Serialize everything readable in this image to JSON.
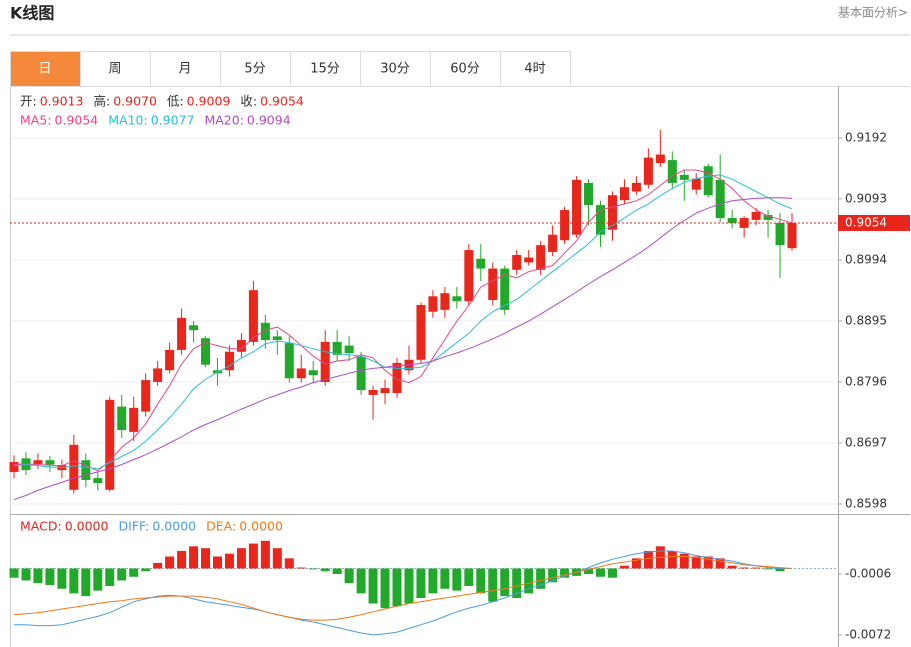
{
  "header": {
    "title": "K线图",
    "link": "基本面分析>"
  },
  "tabs": [
    {
      "label": "日",
      "active": true
    },
    {
      "label": "周",
      "active": false
    },
    {
      "label": "月",
      "active": false
    },
    {
      "label": "5分",
      "active": false
    },
    {
      "label": "15分",
      "active": false
    },
    {
      "label": "30分",
      "active": false
    },
    {
      "label": "60分",
      "active": false
    },
    {
      "label": "4时",
      "active": false
    }
  ],
  "chart_data": [
    {
      "type": "candlestick",
      "ohlc_legend": [
        {
          "label": "开:",
          "value": "0.9013"
        },
        {
          "label": "高:",
          "value": "0.9070"
        },
        {
          "label": "低:",
          "value": "0.9009"
        },
        {
          "label": "收:",
          "value": "0.9054"
        }
      ],
      "up_color": "#e8261c",
      "down_color": "#22a82a",
      "open": [
        0.865,
        0.8672,
        0.8663,
        0.8669,
        0.8653,
        0.8621,
        0.8669,
        0.864,
        0.8621,
        0.8756,
        0.8715,
        0.8748,
        0.8796,
        0.8815,
        0.8848,
        0.8888,
        0.8867,
        0.8815,
        0.8815,
        0.8845,
        0.8861,
        0.8892,
        0.887,
        0.8859,
        0.8802,
        0.8815,
        0.8796,
        0.8861,
        0.8855,
        0.8837,
        0.8775,
        0.8778,
        0.8778,
        0.8815,
        0.8832,
        0.891,
        0.8913,
        0.8935,
        0.8927,
        0.8996,
        0.8929,
        0.898,
        0.8978,
        0.899,
        0.8978,
        0.9007,
        0.9026,
        0.9035,
        0.9119,
        0.9083,
        0.9043,
        0.9091,
        0.9105,
        0.9116,
        0.9151,
        0.9156,
        0.9132,
        0.9108,
        0.9146,
        0.9124,
        0.9062,
        0.9046,
        0.9059,
        0.9067,
        0.9054,
        0.9013
      ],
      "high": [
        0.8677,
        0.8682,
        0.868,
        0.8676,
        0.867,
        0.871,
        0.868,
        0.865,
        0.8772,
        0.8775,
        0.8772,
        0.881,
        0.883,
        0.886,
        0.8915,
        0.8895,
        0.887,
        0.8835,
        0.8855,
        0.8875,
        0.896,
        0.8905,
        0.888,
        0.887,
        0.884,
        0.883,
        0.888,
        0.888,
        0.887,
        0.8845,
        0.879,
        0.88,
        0.8835,
        0.8855,
        0.8925,
        0.8945,
        0.895,
        0.895,
        0.902,
        0.902,
        0.899,
        0.8985,
        0.901,
        0.901,
        0.9025,
        0.905,
        0.908,
        0.913,
        0.9125,
        0.909,
        0.9105,
        0.9125,
        0.913,
        0.9175,
        0.9205,
        0.917,
        0.914,
        0.9135,
        0.915,
        0.9165,
        0.9075,
        0.9065,
        0.9078,
        0.9075,
        0.907,
        0.907
      ],
      "low": [
        0.864,
        0.8645,
        0.8655,
        0.865,
        0.864,
        0.8615,
        0.8625,
        0.862,
        0.8618,
        0.8705,
        0.87,
        0.874,
        0.879,
        0.881,
        0.884,
        0.886,
        0.882,
        0.879,
        0.8805,
        0.8835,
        0.8855,
        0.885,
        0.884,
        0.8795,
        0.8795,
        0.8795,
        0.879,
        0.883,
        0.883,
        0.8775,
        0.8735,
        0.876,
        0.877,
        0.8808,
        0.8825,
        0.89,
        0.89,
        0.8915,
        0.892,
        0.896,
        0.892,
        0.8905,
        0.897,
        0.8985,
        0.897,
        0.9,
        0.902,
        0.903,
        0.905,
        0.9015,
        0.9025,
        0.9085,
        0.91,
        0.911,
        0.9145,
        0.911,
        0.909,
        0.91,
        0.9095,
        0.9055,
        0.9045,
        0.903,
        0.905,
        0.903,
        0.8965,
        0.9009
      ],
      "close": [
        0.8666,
        0.8653,
        0.8669,
        0.8662,
        0.8661,
        0.8694,
        0.8637,
        0.8632,
        0.8767,
        0.8718,
        0.8754,
        0.8799,
        0.8818,
        0.8848,
        0.89,
        0.888,
        0.8824,
        0.881,
        0.8845,
        0.8864,
        0.8945,
        0.8864,
        0.8864,
        0.8802,
        0.8818,
        0.8807,
        0.8861,
        0.884,
        0.8843,
        0.8783,
        0.8783,
        0.8786,
        0.8827,
        0.8832,
        0.8921,
        0.8935,
        0.894,
        0.8927,
        0.901,
        0.898,
        0.898,
        0.8913,
        0.9002,
        0.8998,
        0.9018,
        0.9035,
        0.9075,
        0.9124,
        0.9083,
        0.9035,
        0.9099,
        0.9112,
        0.9119,
        0.916,
        0.9165,
        0.9119,
        0.9124,
        0.9126,
        0.9099,
        0.9062,
        0.9054,
        0.9062,
        0.9072,
        0.9059,
        0.9018,
        0.9054
      ],
      "series": [
        {
          "name": "MA5:",
          "value_label": "0.9054",
          "color": "#e8468a",
          "values": [
            0.8662,
            0.8663,
            0.8662,
            0.8661,
            0.866,
            0.8668,
            0.866,
            0.8652,
            0.8668,
            0.869,
            0.8705,
            0.8728,
            0.876,
            0.879,
            0.8825,
            0.885,
            0.886,
            0.8855,
            0.885,
            0.885,
            0.8868,
            0.888,
            0.8885,
            0.8872,
            0.8855,
            0.8838,
            0.8825,
            0.883,
            0.8832,
            0.884,
            0.8835,
            0.8815,
            0.88,
            0.8795,
            0.8805,
            0.8835,
            0.8865,
            0.8895,
            0.892,
            0.895,
            0.896,
            0.897,
            0.8965,
            0.8975,
            0.898,
            0.8985,
            0.9005,
            0.9025,
            0.9055,
            0.9075,
            0.908,
            0.9085,
            0.909,
            0.91,
            0.9115,
            0.913,
            0.914,
            0.914,
            0.9135,
            0.9125,
            0.911,
            0.909,
            0.9075,
            0.9065,
            0.906,
            0.9054
          ]
        },
        {
          "name": "MA10:",
          "value_label": "0.9077",
          "color": "#2bbfd6",
          "values": [
            0.866,
            0.8662,
            0.866,
            0.8658,
            0.8657,
            0.866,
            0.8658,
            0.8655,
            0.8665,
            0.8675,
            0.8685,
            0.87,
            0.8718,
            0.8738,
            0.876,
            0.8785,
            0.88,
            0.8812,
            0.8822,
            0.8835,
            0.8845,
            0.8858,
            0.8862,
            0.886,
            0.8855,
            0.885,
            0.8845,
            0.8842,
            0.884,
            0.8838,
            0.883,
            0.882,
            0.8818,
            0.8818,
            0.882,
            0.883,
            0.8845,
            0.886,
            0.8875,
            0.8895,
            0.891,
            0.892,
            0.893,
            0.8945,
            0.896,
            0.8975,
            0.899,
            0.9005,
            0.902,
            0.904,
            0.905,
            0.9062,
            0.9075,
            0.9085,
            0.9098,
            0.911,
            0.912,
            0.9126,
            0.913,
            0.9132,
            0.9125,
            0.9115,
            0.9105,
            0.9095,
            0.9085,
            0.9077
          ]
        },
        {
          "name": "MA20:",
          "value_label": "0.9094",
          "color": "#b04cc8",
          "values": [
            0.8605,
            0.8612,
            0.862,
            0.8627,
            0.8633,
            0.864,
            0.8645,
            0.865,
            0.8655,
            0.8662,
            0.867,
            0.8678,
            0.8687,
            0.8697,
            0.8707,
            0.8718,
            0.8727,
            0.8735,
            0.8743,
            0.8752,
            0.876,
            0.8768,
            0.8775,
            0.8782,
            0.8788,
            0.8795,
            0.88,
            0.8805,
            0.881,
            0.8815,
            0.8818,
            0.882,
            0.8822,
            0.8824,
            0.8826,
            0.883,
            0.8837,
            0.8843,
            0.885,
            0.8858,
            0.8866,
            0.8875,
            0.8885,
            0.8895,
            0.8906,
            0.8918,
            0.893,
            0.8942,
            0.8955,
            0.8967,
            0.8978,
            0.899,
            0.9002,
            0.9015,
            0.903,
            0.9045,
            0.9058,
            0.907,
            0.9078,
            0.9085,
            0.909,
            0.9092,
            0.9094,
            0.9095,
            0.9095,
            0.9094
          ]
        }
      ],
      "last_price": 0.9054,
      "ylim": [
        0.8585,
        0.9273
      ],
      "yticks": [
        0.9192,
        0.9093,
        0.8994,
        0.8895,
        0.8796,
        0.8697,
        0.8598
      ],
      "grid": true
    },
    {
      "type": "macd",
      "histogram": {
        "name": "MACD:",
        "value_label": "0.0000",
        "up_color": "#e8261c",
        "down_color": "#22a82a",
        "values": [
          -0.001,
          -0.0013,
          -0.0016,
          -0.0018,
          -0.0022,
          -0.0027,
          -0.003,
          -0.0024,
          -0.0019,
          -0.0013,
          -0.0009,
          -0.0003,
          0.0006,
          0.0013,
          0.0019,
          0.0024,
          0.0022,
          0.0013,
          0.0016,
          0.0022,
          0.0027,
          0.003,
          0.0022,
          0.0011,
          0.0001,
          -0.0001,
          -0.0003,
          -0.0006,
          -0.0016,
          -0.0027,
          -0.0038,
          -0.0043,
          -0.0041,
          -0.0038,
          -0.0032,
          -0.0027,
          -0.0022,
          -0.0024,
          -0.0019,
          -0.0027,
          -0.0036,
          -0.003,
          -0.0032,
          -0.0027,
          -0.0022,
          -0.0015,
          -0.001,
          -0.0008,
          -0.0006,
          -0.0009,
          -0.001,
          0.0003,
          0.0011,
          0.0019,
          0.0024,
          0.0019,
          0.0016,
          0.0013,
          0.0013,
          0.0011,
          0.0003,
          0.0001,
          0.0001,
          -0.0001,
          -0.0003,
          0.0
        ]
      },
      "series": [
        {
          "name": "DIFF:",
          "value_label": "0.0000",
          "color": "#4a9de0",
          "values": [
            -0.0061,
            -0.0061,
            -0.0062,
            -0.0062,
            -0.0061,
            -0.0058,
            -0.0055,
            -0.0052,
            -0.0048,
            -0.0042,
            -0.0036,
            -0.0033,
            -0.003,
            -0.0029,
            -0.003,
            -0.0033,
            -0.0036,
            -0.0038,
            -0.004,
            -0.0042,
            -0.0044,
            -0.0047,
            -0.005,
            -0.0053,
            -0.0056,
            -0.0058,
            -0.0061,
            -0.0064,
            -0.0067,
            -0.007,
            -0.0072,
            -0.0071,
            -0.0069,
            -0.0065,
            -0.0061,
            -0.0057,
            -0.0052,
            -0.0047,
            -0.0043,
            -0.004,
            -0.0036,
            -0.0032,
            -0.0027,
            -0.0022,
            -0.0018,
            -0.0013,
            -0.0008,
            -0.0004,
            0.0001,
            0.0006,
            0.001,
            0.0013,
            0.0016,
            0.0018,
            0.0019,
            0.0019,
            0.0017,
            0.0014,
            0.0012,
            0.001,
            0.0008,
            0.0005,
            0.0003,
            0.0001,
            0.0,
            0.0
          ]
        },
        {
          "name": "DEA:",
          "value_label": "0.0000",
          "color": "#f07a1a",
          "values": [
            -0.005,
            -0.0049,
            -0.0048,
            -0.0046,
            -0.0044,
            -0.0042,
            -0.004,
            -0.0038,
            -0.0036,
            -0.0035,
            -0.0033,
            -0.0032,
            -0.0031,
            -0.003,
            -0.003,
            -0.003,
            -0.0031,
            -0.0033,
            -0.0036,
            -0.0039,
            -0.0043,
            -0.0047,
            -0.005,
            -0.0053,
            -0.0055,
            -0.0056,
            -0.0056,
            -0.0055,
            -0.0053,
            -0.005,
            -0.0047,
            -0.0044,
            -0.0041,
            -0.0038,
            -0.0036,
            -0.0034,
            -0.0032,
            -0.003,
            -0.0028,
            -0.0026,
            -0.0024,
            -0.0022,
            -0.0019,
            -0.0016,
            -0.0013,
            -0.001,
            -0.0007,
            -0.0004,
            -0.0001,
            0.0002,
            0.0005,
            0.0007,
            0.0009,
            0.0011,
            0.0012,
            0.0013,
            0.0013,
            0.0012,
            0.001,
            0.0008,
            0.0006,
            0.0004,
            0.0003,
            0.0002,
            0.0001,
            0.0
          ]
        }
      ],
      "ylim": [
        -0.0083,
        0.0058
      ],
      "yticks": [
        -0.0006,
        -0.0072
      ]
    }
  ]
}
